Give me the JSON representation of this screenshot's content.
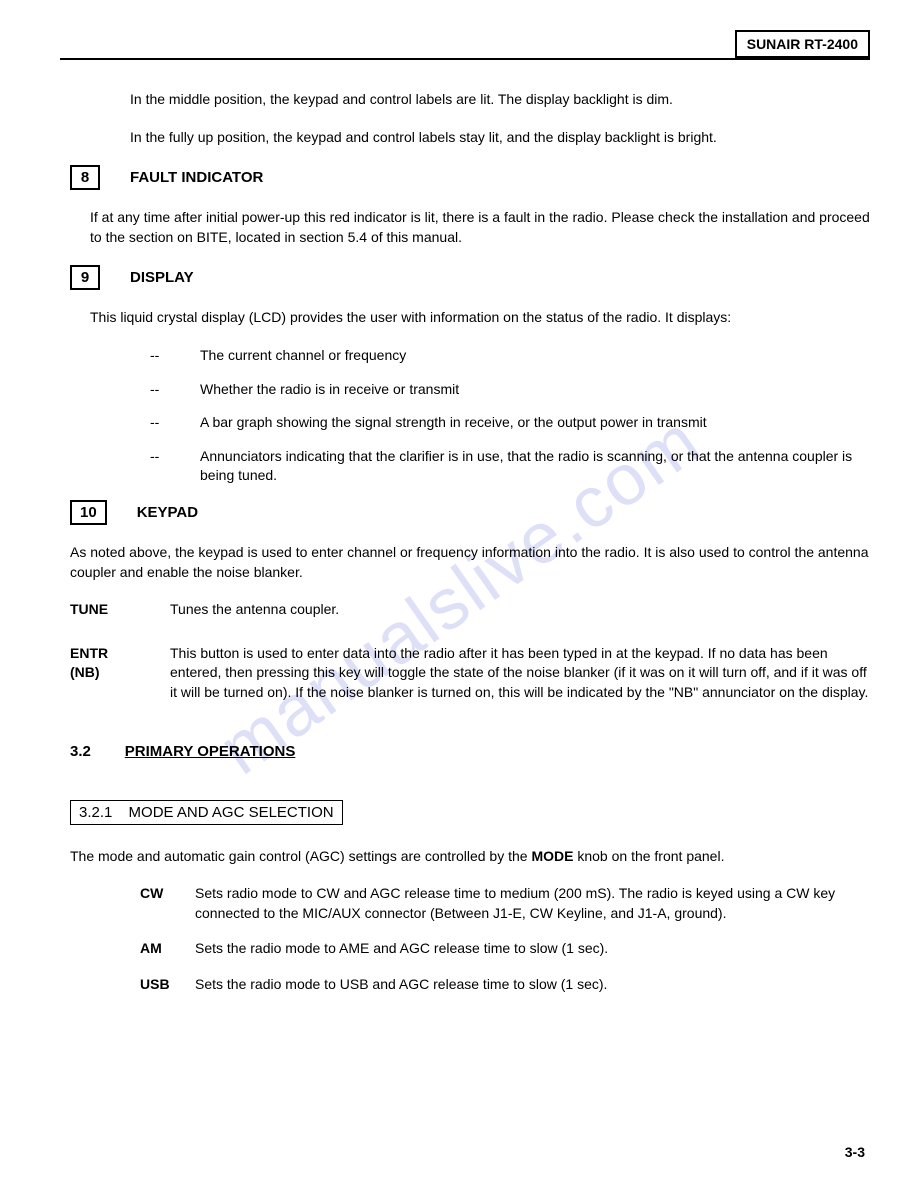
{
  "header": {
    "model": "SUNAIR RT-2400"
  },
  "watermark": "manualslive.com",
  "intro": {
    "p1": "In the middle position, the keypad and control labels are lit.  The display backlight is dim.",
    "p2": "In the fully up position, the keypad and control labels stay lit, and the display backlight is bright."
  },
  "sec8": {
    "num": "8",
    "title": "FAULT INDICATOR",
    "body": "If at any time after initial power-up this red indicator is lit, there is a fault in the radio. Please check the installation and proceed to the section on BITE, located in section 5.4 of this manual."
  },
  "sec9": {
    "num": "9",
    "title": "DISPLAY",
    "intro": "This liquid crystal display (LCD) provides the user with information on the status of the radio.  It displays:",
    "items": [
      "The current channel or frequency",
      "Whether the radio is in receive or transmit",
      "A bar graph showing the signal strength in receive, or the output power in transmit",
      "Annunciators indicating that the clarifier is in use, that the radio is scanning, or that the antenna coupler is being tuned."
    ]
  },
  "sec10": {
    "num": "10",
    "title": "KEYPAD",
    "intro": "As noted above, the keypad is used to enter channel or frequency information into the radio.  It is also used to control the antenna coupler and enable the noise blanker.",
    "tune_label": "TUNE",
    "tune_desc": "Tunes the antenna coupler.",
    "entr_label1": "ENTR",
    "entr_label2": "(NB)",
    "entr_desc": "This button is used to enter data into the radio after it has been typed in at the keypad.  If no data has been entered, then pressing this key will toggle the state of the noise blanker (if it was on it will turn off, and if it  was off it will be turned on).  If the noise blanker is turned on, this will be indicated by the \"NB\" annunciator on the display."
  },
  "sec3_2": {
    "num": "3.2",
    "title": "PRIMARY OPERATIONS"
  },
  "sec3_2_1": {
    "num": "3.2.1",
    "title": "MODE AND AGC SELECTION",
    "intro_pre": "The mode and automatic gain control (AGC) settings are controlled by the ",
    "intro_bold": "MODE",
    "intro_post": " knob on the front panel.",
    "modes": [
      {
        "label": "CW",
        "desc": "Sets radio mode to CW and AGC release time to medium  (200 mS).  The radio is keyed using a CW key connected to the MIC/AUX connector (Between J1-E, CW Keyline, and J1-A, ground)."
      },
      {
        "label": "AM",
        "desc": "Sets the radio mode to AME and AGC release time to slow (1 sec)."
      },
      {
        "label": "USB",
        "desc": "Sets the radio mode to USB and AGC release time to slow (1 sec)."
      }
    ]
  },
  "page_number": "3-3"
}
